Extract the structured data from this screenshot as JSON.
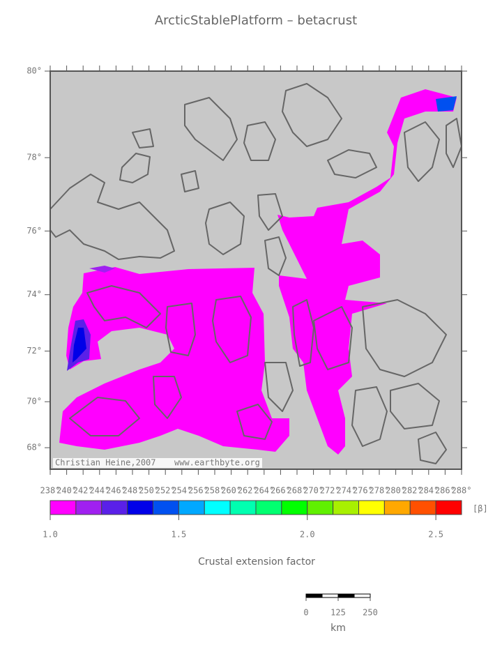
{
  "title": "ArcticStablePlatform – betacrust",
  "map": {
    "projection": "mercator",
    "xlim": [
      238,
      288
    ],
    "ylim": [
      67,
      80
    ],
    "xticks": [
      {
        "value": 238,
        "label": "238°"
      },
      {
        "value": 240,
        "label": "240°"
      },
      {
        "value": 242,
        "label": "242°"
      },
      {
        "value": 244,
        "label": "244°"
      },
      {
        "value": 246,
        "label": "246°"
      },
      {
        "value": 248,
        "label": "248°"
      },
      {
        "value": 250,
        "label": "250°"
      },
      {
        "value": 252,
        "label": "252°"
      },
      {
        "value": 254,
        "label": "254°"
      },
      {
        "value": 256,
        "label": "256°"
      },
      {
        "value": 258,
        "label": "258°"
      },
      {
        "value": 260,
        "label": "260°"
      },
      {
        "value": 262,
        "label": "262°"
      },
      {
        "value": 264,
        "label": "264°"
      },
      {
        "value": 266,
        "label": "266°"
      },
      {
        "value": 268,
        "label": "268°"
      },
      {
        "value": 270,
        "label": "270°"
      },
      {
        "value": 272,
        "label": "272°"
      },
      {
        "value": 274,
        "label": "274°"
      },
      {
        "value": 276,
        "label": "276°"
      },
      {
        "value": 278,
        "label": "278°"
      },
      {
        "value": 280,
        "label": "280°"
      },
      {
        "value": 282,
        "label": "282°"
      },
      {
        "value": 284,
        "label": "284°"
      },
      {
        "value": 286,
        "label": "286°"
      },
      {
        "value": 288,
        "label": "288°"
      }
    ],
    "yticks": [
      {
        "value": 68,
        "label": "68°"
      },
      {
        "value": 70,
        "label": "70°"
      },
      {
        "value": 72,
        "label": "72°"
      },
      {
        "value": 74,
        "label": "74°"
      },
      {
        "value": 76,
        "label": "76°"
      },
      {
        "value": 78,
        "label": "78°"
      },
      {
        "value": 80,
        "label": "80°"
      }
    ],
    "credit_left": "Christian Heine,2007",
    "credit_right": "www.earthbyte.org"
  },
  "colorbar": {
    "clim": [
      1.0,
      2.6
    ],
    "unit": "[β]",
    "label": "Crustal extension factor",
    "colors": [
      "#ff00ff",
      "#a020f0",
      "#5a20e8",
      "#0000e8",
      "#0050f0",
      "#00a8ff",
      "#00ffff",
      "#00ffb0",
      "#00ff70",
      "#00ff00",
      "#60f000",
      "#a8f000",
      "#ffff00",
      "#ffa800",
      "#ff5000",
      "#ff0000"
    ],
    "ticks": [
      {
        "value": 1.0,
        "label": "1.0"
      },
      1.5,
      {
        "value": 2.0,
        "label": "2.0"
      },
      2.5
    ]
  },
  "scale_bar": {
    "ticks": [
      0,
      125,
      250
    ],
    "max": 250,
    "unit": "km"
  }
}
